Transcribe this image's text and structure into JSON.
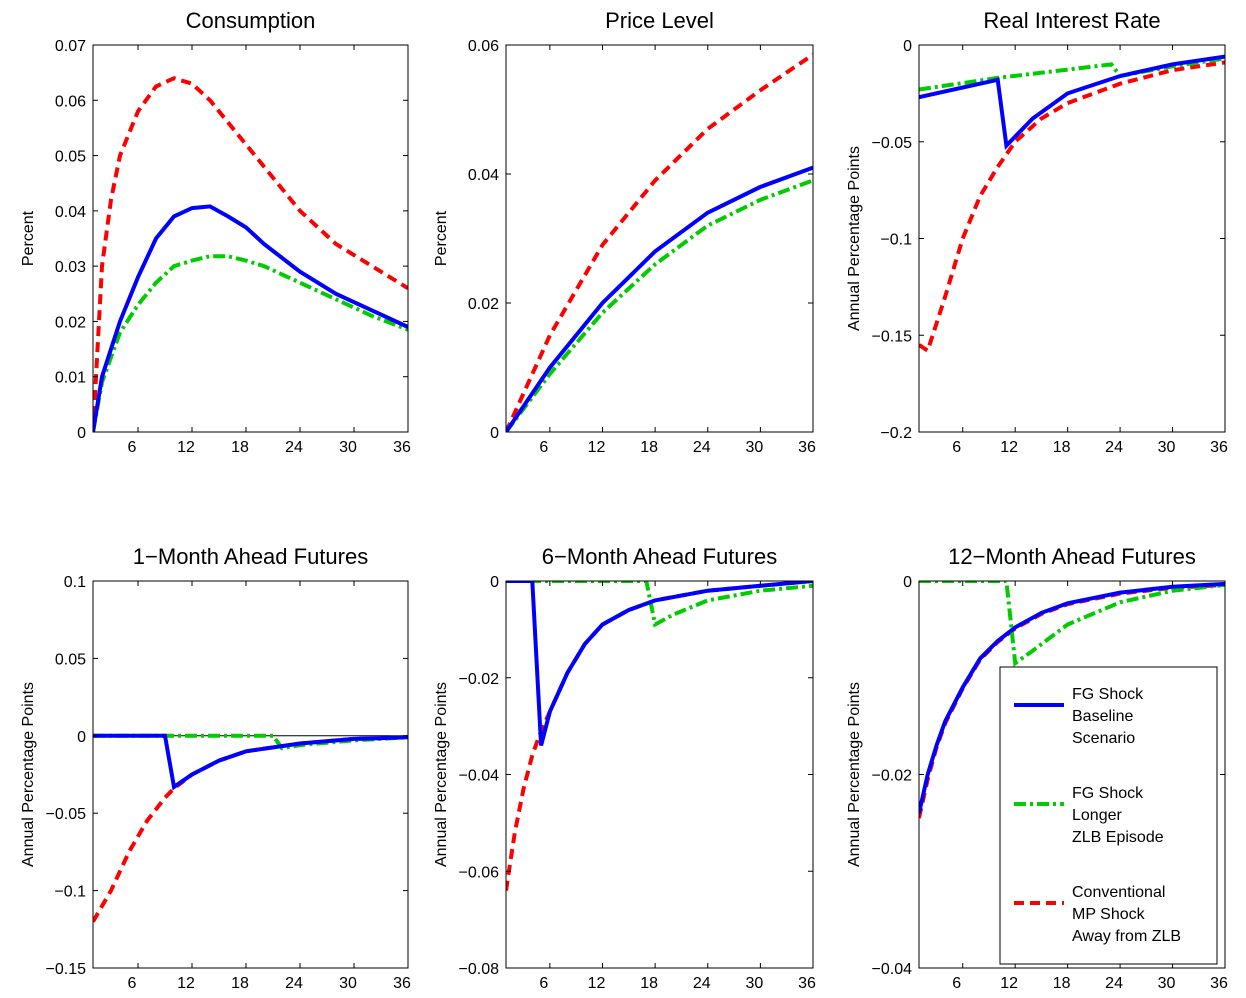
{
  "chart_data": [
    {
      "type": "line",
      "title": "Consumption",
      "ylabel": "Percent",
      "xlim": [
        1,
        36
      ],
      "xticks": [
        6,
        12,
        18,
        24,
        30,
        36
      ],
      "ylim": [
        0,
        0.07
      ],
      "yticks": [
        0,
        0.01,
        0.02,
        0.03,
        0.04,
        0.05,
        0.06,
        0.07
      ],
      "series": [
        {
          "color": "#ff0000",
          "linestyle": "dashed",
          "x": [
            1,
            2,
            3,
            4,
            6,
            8,
            10,
            12,
            14,
            16,
            18,
            20,
            24,
            28,
            32,
            36
          ],
          "values": [
            0,
            0.03,
            0.042,
            0.05,
            0.058,
            0.0625,
            0.064,
            0.063,
            0.06,
            0.056,
            0.052,
            0.048,
            0.04,
            0.034,
            0.03,
            0.026
          ]
        },
        {
          "color": "#00cc00",
          "linestyle": "dashdot",
          "x": [
            1,
            2,
            4,
            6,
            8,
            10,
            12,
            14,
            16,
            18,
            20,
            24,
            28,
            32,
            36
          ],
          "values": [
            0,
            0.009,
            0.018,
            0.023,
            0.027,
            0.03,
            0.031,
            0.0318,
            0.0318,
            0.031,
            0.03,
            0.027,
            0.024,
            0.021,
            0.0185
          ]
        },
        {
          "color": "#0000ff",
          "linestyle": "solid",
          "x": [
            1,
            2,
            4,
            6,
            8,
            10,
            12,
            14,
            16,
            18,
            20,
            24,
            28,
            32,
            36
          ],
          "values": [
            0,
            0.01,
            0.02,
            0.028,
            0.035,
            0.039,
            0.0405,
            0.0408,
            0.039,
            0.037,
            0.034,
            0.029,
            0.025,
            0.022,
            0.019
          ]
        }
      ]
    },
    {
      "type": "line",
      "title": "Price Level",
      "ylabel": "Percent",
      "xlim": [
        1,
        36
      ],
      "xticks": [
        6,
        12,
        18,
        24,
        30,
        36
      ],
      "ylim": [
        0,
        0.06
      ],
      "yticks": [
        0,
        0.02,
        0.04,
        0.06
      ],
      "series": [
        {
          "color": "#ff0000",
          "linestyle": "dashed",
          "x": [
            1,
            6,
            12,
            18,
            24,
            30,
            36
          ],
          "values": [
            0,
            0.015,
            0.029,
            0.039,
            0.047,
            0.053,
            0.0585
          ]
        },
        {
          "color": "#00cc00",
          "linestyle": "dashdot",
          "x": [
            1,
            6,
            12,
            18,
            24,
            30,
            36
          ],
          "values": [
            0,
            0.009,
            0.0185,
            0.026,
            0.032,
            0.036,
            0.039
          ]
        },
        {
          "color": "#0000ff",
          "linestyle": "solid",
          "x": [
            1,
            6,
            12,
            18,
            24,
            30,
            36
          ],
          "values": [
            0,
            0.01,
            0.02,
            0.028,
            0.034,
            0.038,
            0.041
          ]
        }
      ]
    },
    {
      "type": "line",
      "title": "Real Interest Rate",
      "ylabel": "Annual Percentage Points",
      "xlim": [
        1,
        36
      ],
      "xticks": [
        6,
        12,
        18,
        24,
        30,
        36
      ],
      "ylim": [
        -0.2,
        0
      ],
      "yticks": [
        {
          "value": -0.2,
          "label": "−0.2"
        },
        {
          "value": -0.15,
          "label": "−0.15"
        },
        {
          "value": -0.1,
          "label": "−0.1"
        },
        {
          "value": -0.05,
          "label": "−0.05"
        },
        0
      ],
      "series": [
        {
          "color": "#ff0000",
          "linestyle": "dashed",
          "x": [
            1,
            2,
            4,
            6,
            8,
            10,
            12,
            15,
            18,
            24,
            30,
            36
          ],
          "values": [
            -0.155,
            -0.158,
            -0.13,
            -0.1,
            -0.078,
            -0.063,
            -0.05,
            -0.038,
            -0.03,
            -0.02,
            -0.013,
            -0.009
          ]
        },
        {
          "color": "#00cc00",
          "linestyle": "dashdot",
          "x": [
            1,
            10,
            23,
            24,
            30,
            36
          ],
          "values": [
            -0.023,
            -0.017,
            -0.01,
            -0.016,
            -0.011,
            -0.007
          ]
        },
        {
          "color": "#0000ff",
          "linestyle": "solid",
          "x": [
            1,
            10,
            11,
            14,
            18,
            24,
            30,
            36
          ],
          "values": [
            -0.027,
            -0.018,
            -0.052,
            -0.038,
            -0.025,
            -0.016,
            -0.01,
            -0.006
          ]
        }
      ]
    },
    {
      "type": "line",
      "title": "1−Month Ahead Futures",
      "ylabel": "Annual Percentage Points",
      "xlim": [
        1,
        36
      ],
      "xticks": [
        6,
        12,
        18,
        24,
        30,
        36
      ],
      "ylim": [
        -0.15,
        0.1
      ],
      "yticks": [
        {
          "value": -0.15,
          "label": "−0.15"
        },
        {
          "value": -0.1,
          "label": "−0.1"
        },
        {
          "value": -0.05,
          "label": "−0.05"
        },
        0,
        0.05,
        0.1
      ],
      "series": [
        {
          "color": "#ff0000",
          "linestyle": "dashed",
          "x": [
            1,
            3,
            5,
            7,
            9,
            10,
            12,
            15,
            18,
            24,
            30,
            36
          ],
          "values": [
            -0.12,
            -0.1,
            -0.075,
            -0.055,
            -0.04,
            -0.034,
            -0.025,
            -0.016,
            -0.01,
            -0.005,
            -0.002,
            -0.001
          ]
        },
        {
          "color": "#00cc00",
          "linestyle": "dashdot",
          "x": [
            1,
            21,
            22,
            24,
            30,
            36
          ],
          "values": [
            0,
            0,
            -0.008,
            -0.006,
            -0.003,
            -0.001
          ]
        },
        {
          "color": "#0000ff",
          "linestyle": "solid",
          "x": [
            1,
            9,
            10,
            12,
            15,
            18,
            24,
            30,
            36
          ],
          "values": [
            0,
            0,
            -0.033,
            -0.025,
            -0.016,
            -0.01,
            -0.005,
            -0.002,
            -0.001
          ]
        }
      ]
    },
    {
      "type": "line",
      "title": "6−Month Ahead Futures",
      "ylabel": "Annual Percentage Points",
      "xlim": [
        1,
        36
      ],
      "xticks": [
        6,
        12,
        18,
        24,
        30,
        36
      ],
      "ylim": [
        -0.08,
        0
      ],
      "yticks": [
        {
          "value": -0.08,
          "label": "−0.08"
        },
        {
          "value": -0.06,
          "label": "−0.06"
        },
        {
          "value": -0.04,
          "label": "−0.04"
        },
        {
          "value": -0.02,
          "label": "−0.02"
        },
        0
      ],
      "series": [
        {
          "color": "#ff0000",
          "linestyle": "dashed",
          "x": [
            1,
            2,
            3,
            4,
            5,
            6,
            8,
            10,
            12,
            15,
            18,
            24,
            30,
            36
          ],
          "values": [
            -0.064,
            -0.052,
            -0.043,
            -0.036,
            -0.031,
            -0.027,
            -0.019,
            -0.013,
            -0.009,
            -0.006,
            -0.004,
            -0.002,
            -0.001,
            0
          ]
        },
        {
          "color": "#00cc00",
          "linestyle": "dashdot",
          "x": [
            1,
            17,
            18,
            20,
            24,
            30,
            36
          ],
          "values": [
            0,
            0,
            -0.009,
            -0.007,
            -0.004,
            -0.002,
            -0.001
          ]
        },
        {
          "color": "#0000ff",
          "linestyle": "solid",
          "x": [
            1,
            4,
            5,
            6,
            8,
            10,
            12,
            15,
            18,
            24,
            30,
            36
          ],
          "values": [
            0,
            0,
            -0.034,
            -0.027,
            -0.019,
            -0.013,
            -0.009,
            -0.006,
            -0.004,
            -0.002,
            -0.001,
            0
          ]
        }
      ]
    },
    {
      "type": "line",
      "title": "12−Month Ahead Futures",
      "ylabel": "Annual Percentage Points",
      "xlim": [
        1,
        36
      ],
      "xticks": [
        6,
        12,
        18,
        24,
        30,
        36
      ],
      "ylim": [
        -0.04,
        0
      ],
      "yticks": [
        {
          "value": -0.04,
          "label": "−0.04"
        },
        {
          "value": -0.02,
          "label": "−0.02"
        },
        0
      ],
      "legend": "lower right",
      "series": [
        {
          "name": [
            "Conventional",
            "MP Shock",
            "Away from ZLB"
          ],
          "color": "#ff0000",
          "linestyle": "dashed",
          "x": [
            1,
            2,
            3,
            4,
            6,
            8,
            10,
            12,
            15,
            18,
            24,
            30,
            36
          ],
          "values": [
            -0.0245,
            -0.0205,
            -0.0172,
            -0.0147,
            -0.0111,
            -0.0081,
            -0.0063,
            -0.0049,
            -0.0034,
            -0.0024,
            -0.0013,
            -0.0007,
            -0.0004
          ]
        },
        {
          "name": [
            "FG Shock",
            "Longer",
            "ZLB Episode"
          ],
          "color": "#00cc00",
          "linestyle": "dashdot",
          "x": [
            1,
            11,
            12,
            14,
            18,
            24,
            30,
            36
          ],
          "values": [
            0,
            0,
            -0.0085,
            -0.0072,
            -0.0045,
            -0.0022,
            -0.001,
            -0.0004
          ]
        },
        {
          "name": [
            "FG Shock",
            "Baseline",
            "Scenario"
          ],
          "color": "#0000ff",
          "linestyle": "solid",
          "x": [
            1,
            2,
            3,
            4,
            6,
            8,
            10,
            12,
            15,
            18,
            24,
            30,
            36
          ],
          "values": [
            -0.024,
            -0.02,
            -0.017,
            -0.0145,
            -0.011,
            -0.008,
            -0.0062,
            -0.0048,
            -0.0033,
            -0.0023,
            -0.0012,
            -0.0006,
            -0.0003
          ]
        }
      ]
    }
  ]
}
